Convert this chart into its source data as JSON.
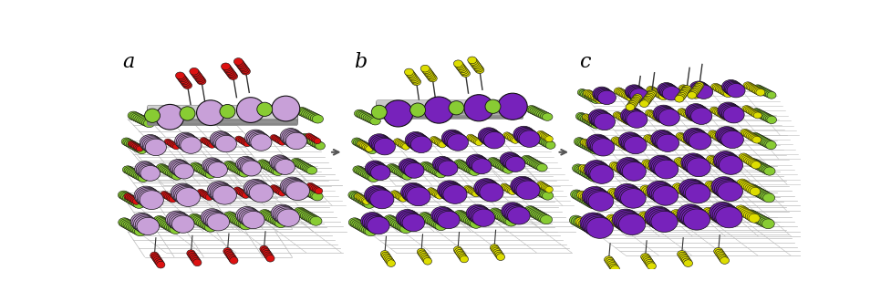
{
  "figure_width": 9.78,
  "figure_height": 3.31,
  "dpi": 100,
  "bg_color": "#ffffff",
  "panel_labels": [
    "a",
    "b",
    "c"
  ],
  "panel_label_fontsize": 16,
  "colors": {
    "lavender": "#C8A0D8",
    "green": "#88CC33",
    "red": "#DD1111",
    "purple": "#7722BB",
    "yellow": "#DDDD00",
    "dark_gray": "#333333",
    "med_gray": "#888888",
    "light_gray": "#BBBBBB",
    "bar_gray": "#909090"
  }
}
